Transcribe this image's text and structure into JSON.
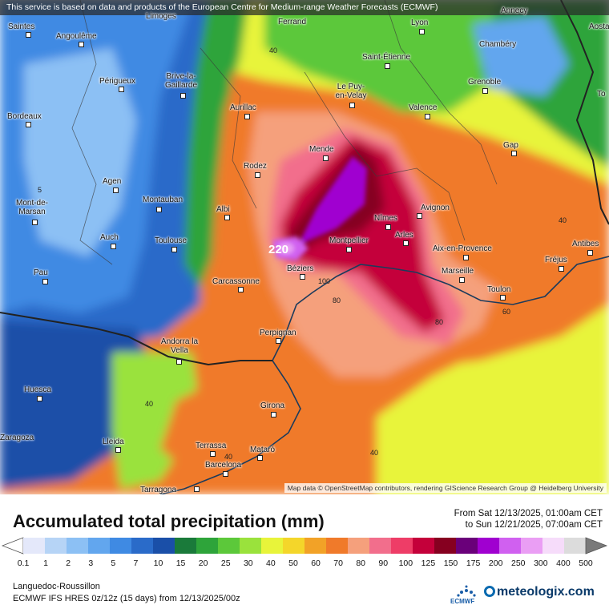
{
  "header": {
    "notice": "This service is based on data and products of the European Centre for Medium-range Weather Forecasts (ECMWF)"
  },
  "map": {
    "credit": "Map data © OpenStreetMap contributors, rendering GIScience Research Group @ Heidelberg University",
    "max_value_label": "220",
    "cities": [
      {
        "name": "Saintes"
      },
      {
        "name": "Angoulême"
      },
      {
        "name": "Limoges"
      },
      {
        "name": "Ferrand"
      },
      {
        "name": "Lyon"
      },
      {
        "name": "Annecy"
      },
      {
        "name": "Aosta"
      },
      {
        "name": "Chambéry"
      },
      {
        "name": "Saint-Étienne"
      },
      {
        "name": "Grenoble"
      },
      {
        "name": "Périgueux"
      },
      {
        "name": "Brive-la-Gaillarde"
      },
      {
        "name": "Le Puy-en-Velay"
      },
      {
        "name": "Valence"
      },
      {
        "name": "Bordeaux"
      },
      {
        "name": "Aurillac"
      },
      {
        "name": "Gap"
      },
      {
        "name": "Mende"
      },
      {
        "name": "Rodez"
      },
      {
        "name": "Agen"
      },
      {
        "name": "Montauban"
      },
      {
        "name": "Mont-de-Marsan"
      },
      {
        "name": "Albi"
      },
      {
        "name": "Nîmes"
      },
      {
        "name": "Avignon"
      },
      {
        "name": "Auch"
      },
      {
        "name": "Toulouse"
      },
      {
        "name": "Montpellier"
      },
      {
        "name": "Arles"
      },
      {
        "name": "Aix-en-Provence"
      },
      {
        "name": "Antibes"
      },
      {
        "name": "Fréjus"
      },
      {
        "name": "Pau"
      },
      {
        "name": "Béziers"
      },
      {
        "name": "Carcassonne"
      },
      {
        "name": "Marseille"
      },
      {
        "name": "Toulon"
      },
      {
        "name": "Perpignan"
      },
      {
        "name": "Andorra la Vella"
      },
      {
        "name": "Huesca"
      },
      {
        "name": "Girona"
      },
      {
        "name": "Lleida"
      },
      {
        "name": "Terrassa"
      },
      {
        "name": "Mataró"
      },
      {
        "name": "Barcelona"
      },
      {
        "name": "Tarragona"
      },
      {
        "name": "Zaragoza"
      },
      {
        "name": "To"
      }
    ],
    "contour_labels": [
      "40",
      "5",
      "100",
      "80",
      "80",
      "60",
      "40",
      "40",
      "40",
      "40"
    ]
  },
  "legend": {
    "title": "Accumulated total precipitation (mm)",
    "period_from": "From Sat 12/13/2025, 01:00am CET",
    "period_to": "to Sun 12/21/2025, 07:00am CET",
    "region": "Languedoc-Roussillon",
    "model": "ECMWF IFS HRES 0z/12z (15 days) from 12/13/2025/00z",
    "brand": "meteologix.com",
    "agency": "ECMWF",
    "scale_labels": [
      "0.1",
      "1",
      "2",
      "3",
      "5",
      "7",
      "10",
      "15",
      "20",
      "25",
      "30",
      "40",
      "50",
      "60",
      "70",
      "80",
      "90",
      "100",
      "125",
      "150",
      "175",
      "200",
      "250",
      "300",
      "400",
      "500"
    ],
    "scale_colors": [
      "#e4e8fa",
      "#b6d4f6",
      "#8cc0f4",
      "#62a6ee",
      "#3f8ae3",
      "#2a6bc9",
      "#1a4fa8",
      "#1a7a3a",
      "#2ea43a",
      "#5cc83a",
      "#9ae23c",
      "#e8f43a",
      "#f4d62a",
      "#f2a227",
      "#f07a2a",
      "#f5a07c",
      "#f26e8c",
      "#ee3d67",
      "#c4003a",
      "#860020",
      "#6a007a",
      "#a000d0",
      "#d060f0",
      "#ea9ef4",
      "#f6dcfa",
      "#dcdcdc"
    ]
  }
}
